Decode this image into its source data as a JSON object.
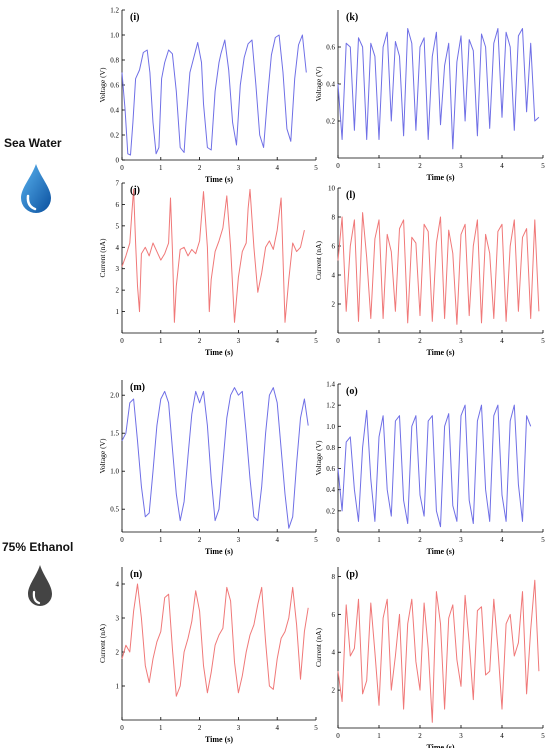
{
  "sections": [
    {
      "label": "Sea Water",
      "icon": "blue-water-drop-icon",
      "color": "#1f6fc4"
    },
    {
      "label": "75% Ethanol",
      "icon": "gray-liquid-drop-icon",
      "color": "#444444"
    }
  ],
  "colors": {
    "voltage": "#6f6fe6",
    "current": "#f07878",
    "axis": "#000000"
  },
  "chart_data": [
    {
      "id": "i",
      "type": "line",
      "panel_label": "(i)",
      "xlabel": "Time (s)",
      "ylabel": "Voltage (V)",
      "xlim": [
        0,
        5
      ],
      "ylim": [
        0,
        1.2
      ],
      "xticks": [
        0,
        1,
        2,
        3,
        4,
        5
      ],
      "yticks": [
        0,
        0.2,
        0.4,
        0.6,
        0.8,
        1.0,
        1.2
      ],
      "ytick_labels": [
        "0",
        "0.2",
        "0.4",
        "0.6",
        "0.8",
        "1.0",
        "1.2"
      ],
      "color": "voltage",
      "x": [
        0,
        0.08,
        0.15,
        0.22,
        0.28,
        0.35,
        0.45,
        0.55,
        0.65,
        0.72,
        0.8,
        0.88,
        0.95,
        1.02,
        1.1,
        1.2,
        1.3,
        1.4,
        1.5,
        1.6,
        1.65,
        1.75,
        1.85,
        1.95,
        2.05,
        2.1,
        2.2,
        2.3,
        2.4,
        2.5,
        2.55,
        2.65,
        2.75,
        2.85,
        2.95,
        3.05,
        3.15,
        3.25,
        3.35,
        3.45,
        3.55,
        3.65,
        3.75,
        3.85,
        3.95,
        4.05,
        4.15,
        4.25,
        4.35,
        4.45,
        4.55,
        4.65,
        4.75
      ],
      "y": [
        0.7,
        0.4,
        0.05,
        0.04,
        0.3,
        0.65,
        0.72,
        0.86,
        0.88,
        0.7,
        0.3,
        0.05,
        0.1,
        0.65,
        0.78,
        0.88,
        0.85,
        0.55,
        0.1,
        0.06,
        0.3,
        0.7,
        0.82,
        0.94,
        0.78,
        0.45,
        0.1,
        0.08,
        0.55,
        0.78,
        0.85,
        0.96,
        0.72,
        0.3,
        0.12,
        0.6,
        0.82,
        0.93,
        0.96,
        0.6,
        0.2,
        0.1,
        0.5,
        0.84,
        0.98,
        1.0,
        0.7,
        0.25,
        0.15,
        0.65,
        0.92,
        1.0,
        0.7
      ]
    },
    {
      "id": "k",
      "type": "line",
      "panel_label": "(k)",
      "xlabel": "Time (s)",
      "ylabel": "Voltage (V)",
      "xlim": [
        0,
        5
      ],
      "ylim": [
        0,
        0.8
      ],
      "xticks": [
        0,
        1,
        2,
        3,
        4,
        5
      ],
      "yticks": [
        0.2,
        0.4,
        0.6
      ],
      "ytick_labels": [
        "0.2",
        "0.4",
        "0.6"
      ],
      "color": "voltage",
      "x": [
        0,
        0.1,
        0.2,
        0.3,
        0.4,
        0.5,
        0.6,
        0.7,
        0.8,
        0.9,
        1.0,
        1.1,
        1.2,
        1.3,
        1.4,
        1.5,
        1.6,
        1.7,
        1.8,
        1.9,
        2.0,
        2.1,
        2.2,
        2.3,
        2.4,
        2.5,
        2.6,
        2.7,
        2.8,
        2.9,
        3.0,
        3.1,
        3.2,
        3.3,
        3.4,
        3.5,
        3.6,
        3.7,
        3.8,
        3.9,
        4.0,
        4.1,
        4.2,
        4.3,
        4.4,
        4.5,
        4.6,
        4.7,
        4.8,
        4.9
      ],
      "y": [
        0.4,
        0.1,
        0.62,
        0.6,
        0.15,
        0.65,
        0.6,
        0.1,
        0.62,
        0.55,
        0.1,
        0.6,
        0.68,
        0.2,
        0.63,
        0.55,
        0.12,
        0.7,
        0.62,
        0.15,
        0.6,
        0.65,
        0.1,
        0.55,
        0.68,
        0.18,
        0.5,
        0.62,
        0.05,
        0.52,
        0.66,
        0.2,
        0.64,
        0.58,
        0.12,
        0.67,
        0.6,
        0.16,
        0.62,
        0.7,
        0.22,
        0.68,
        0.6,
        0.15,
        0.66,
        0.7,
        0.25,
        0.62,
        0.2,
        0.22
      ]
    },
    {
      "id": "j",
      "type": "line",
      "panel_label": "(j)",
      "xlabel": "Time (s)",
      "ylabel": "Current (nA)",
      "xlim": [
        0,
        5
      ],
      "ylim": [
        0,
        7
      ],
      "xticks": [
        0,
        1,
        2,
        3,
        4,
        5
      ],
      "yticks": [
        1,
        2,
        3,
        4,
        5,
        6,
        7
      ],
      "ytick_labels": [
        "1",
        "2",
        "3",
        "4",
        "5",
        "6",
        "7"
      ],
      "color": "current",
      "x": [
        0,
        0.1,
        0.2,
        0.25,
        0.3,
        0.35,
        0.4,
        0.45,
        0.5,
        0.6,
        0.7,
        0.8,
        0.9,
        1.0,
        1.1,
        1.2,
        1.25,
        1.3,
        1.35,
        1.4,
        1.5,
        1.6,
        1.7,
        1.8,
        1.9,
        2.0,
        2.1,
        2.2,
        2.25,
        2.3,
        2.4,
        2.5,
        2.6,
        2.7,
        2.8,
        2.9,
        3.0,
        3.1,
        3.2,
        3.25,
        3.3,
        3.4,
        3.5,
        3.6,
        3.7,
        3.8,
        3.9,
        4.0,
        4.1,
        4.15,
        4.2,
        4.3,
        4.4,
        4.5,
        4.6,
        4.7
      ],
      "y": [
        3.1,
        3.6,
        4.2,
        5.5,
        6.7,
        4.2,
        2.2,
        1.0,
        3.7,
        4.0,
        3.6,
        4.2,
        3.8,
        3.4,
        3.7,
        4.2,
        6.3,
        3.9,
        0.5,
        2.2,
        3.9,
        4.0,
        3.6,
        3.9,
        3.7,
        4.3,
        6.6,
        4.0,
        1.0,
        2.5,
        3.8,
        4.3,
        4.9,
        6.4,
        4.0,
        0.5,
        2.6,
        3.8,
        4.2,
        5.8,
        6.7,
        4.0,
        1.9,
        2.8,
        4.0,
        4.3,
        3.9,
        4.8,
        6.3,
        3.5,
        0.5,
        2.5,
        4.2,
        3.8,
        4.0,
        4.8
      ]
    },
    {
      "id": "l",
      "type": "line",
      "panel_label": "(l)",
      "xlabel": "Time (s)",
      "ylabel": "Current (nA)",
      "xlim": [
        0,
        5
      ],
      "ylim": [
        0,
        10
      ],
      "xticks": [
        0,
        1,
        2,
        3,
        4,
        5
      ],
      "yticks": [
        2,
        4,
        6,
        8,
        10
      ],
      "ytick_labels": [
        "2",
        "4",
        "6",
        "8",
        "10"
      ],
      "color": "current",
      "x": [
        0,
        0.1,
        0.2,
        0.3,
        0.4,
        0.5,
        0.6,
        0.7,
        0.8,
        0.9,
        1.0,
        1.1,
        1.2,
        1.3,
        1.4,
        1.5,
        1.6,
        1.7,
        1.8,
        1.9,
        2.0,
        2.1,
        2.2,
        2.3,
        2.4,
        2.5,
        2.6,
        2.7,
        2.8,
        2.9,
        3.0,
        3.1,
        3.2,
        3.3,
        3.4,
        3.5,
        3.6,
        3.7,
        3.8,
        3.9,
        4.0,
        4.1,
        4.2,
        4.3,
        4.4,
        4.5,
        4.6,
        4.7,
        4.8,
        4.9
      ],
      "y": [
        5.0,
        8.0,
        1.5,
        6.0,
        7.8,
        0.8,
        8.3,
        5.2,
        1.0,
        6.5,
        7.8,
        1.0,
        6.8,
        5.6,
        1.5,
        7.2,
        7.8,
        0.7,
        6.6,
        6.2,
        1.2,
        7.5,
        7.0,
        0.8,
        6.2,
        8.0,
        1.0,
        7.1,
        5.5,
        0.6,
        6.8,
        7.5,
        1.2,
        6.0,
        7.8,
        0.7,
        6.8,
        5.5,
        1.0,
        7.0,
        7.5,
        0.8,
        6.0,
        7.8,
        1.5,
        6.6,
        7.2,
        1.0,
        7.8,
        1.5
      ]
    },
    {
      "id": "m",
      "type": "line",
      "panel_label": "(m)",
      "xlabel": "Time (s)",
      "ylabel": "Voltage (V)",
      "xlim": [
        0,
        5
      ],
      "ylim": [
        0.2,
        2.2
      ],
      "xticks": [
        0,
        1,
        2,
        3,
        4,
        5
      ],
      "yticks": [
        0.5,
        1.0,
        1.5,
        2.0
      ],
      "ytick_labels": [
        "0.5",
        "1.0",
        "1.5",
        "2.0"
      ],
      "color": "voltage",
      "x": [
        0,
        0.1,
        0.2,
        0.3,
        0.4,
        0.5,
        0.6,
        0.7,
        0.8,
        0.9,
        1.0,
        1.1,
        1.2,
        1.3,
        1.4,
        1.5,
        1.6,
        1.7,
        1.8,
        1.9,
        2.0,
        2.1,
        2.2,
        2.3,
        2.4,
        2.5,
        2.6,
        2.7,
        2.8,
        2.9,
        3.0,
        3.1,
        3.2,
        3.3,
        3.4,
        3.5,
        3.6,
        3.7,
        3.8,
        3.9,
        4.0,
        4.1,
        4.2,
        4.3,
        4.4,
        4.5,
        4.6,
        4.7,
        4.8
      ],
      "y": [
        1.4,
        1.5,
        1.9,
        1.95,
        1.4,
        0.8,
        0.4,
        0.45,
        1.0,
        1.6,
        1.95,
        2.05,
        1.9,
        1.3,
        0.7,
        0.35,
        0.6,
        1.2,
        1.75,
        2.05,
        1.9,
        2.05,
        1.6,
        0.9,
        0.35,
        0.5,
        1.1,
        1.7,
        2.0,
        2.1,
        2.0,
        2.05,
        1.5,
        0.9,
        0.4,
        0.35,
        0.8,
        1.5,
        2.0,
        2.1,
        1.9,
        1.3,
        0.7,
        0.25,
        0.4,
        1.1,
        1.7,
        1.95,
        1.6
      ]
    },
    {
      "id": "o",
      "type": "line",
      "panel_label": "(o)",
      "xlabel": "Time (s)",
      "ylabel": "Voltage (V)",
      "xlim": [
        0,
        5
      ],
      "ylim": [
        0,
        1.4
      ],
      "xticks": [
        0,
        1,
        2,
        3,
        4,
        5
      ],
      "yticks": [
        0.2,
        0.4,
        0.6,
        0.8,
        1.0,
        1.2,
        1.4
      ],
      "ytick_labels": [
        "0.2",
        "0.4",
        "0.6",
        "0.8",
        "1.0",
        "1.2",
        "1.4"
      ],
      "color": "voltage",
      "x": [
        0,
        0.1,
        0.2,
        0.3,
        0.4,
        0.5,
        0.6,
        0.7,
        0.8,
        0.9,
        1.0,
        1.1,
        1.2,
        1.3,
        1.4,
        1.5,
        1.6,
        1.7,
        1.8,
        1.9,
        2.0,
        2.1,
        2.2,
        2.3,
        2.4,
        2.5,
        2.6,
        2.7,
        2.8,
        2.9,
        3.0,
        3.1,
        3.2,
        3.3,
        3.4,
        3.5,
        3.6,
        3.7,
        3.8,
        3.9,
        4.0,
        4.1,
        4.2,
        4.3,
        4.4,
        4.5,
        4.6,
        4.7
      ],
      "y": [
        0.6,
        0.2,
        0.85,
        0.9,
        0.4,
        0.1,
        0.8,
        1.15,
        0.5,
        0.1,
        0.9,
        1.1,
        0.4,
        0.15,
        1.05,
        1.1,
        0.3,
        0.08,
        1.0,
        1.1,
        0.35,
        0.15,
        1.05,
        1.1,
        0.2,
        0.05,
        1.0,
        1.12,
        0.25,
        0.1,
        1.1,
        1.2,
        0.3,
        0.08,
        1.05,
        1.2,
        0.4,
        0.1,
        1.1,
        1.2,
        0.35,
        0.1,
        1.05,
        1.2,
        0.45,
        0.1,
        1.1,
        1.0
      ]
    },
    {
      "id": "n",
      "type": "line",
      "panel_label": "(n)",
      "xlabel": "Time (s)",
      "ylabel": "Current (nA)",
      "xlim": [
        0,
        5
      ],
      "ylim": [
        0,
        4.5
      ],
      "xticks": [
        0,
        1,
        2,
        3,
        4,
        5
      ],
      "yticks": [
        1,
        2,
        3,
        4
      ],
      "ytick_labels": [
        "1",
        "2",
        "3",
        "4"
      ],
      "color": "current",
      "x": [
        0,
        0.1,
        0.2,
        0.3,
        0.4,
        0.5,
        0.6,
        0.7,
        0.8,
        0.9,
        1.0,
        1.1,
        1.2,
        1.3,
        1.4,
        1.5,
        1.6,
        1.7,
        1.8,
        1.9,
        2.0,
        2.1,
        2.2,
        2.3,
        2.4,
        2.5,
        2.6,
        2.7,
        2.8,
        2.9,
        3.0,
        3.1,
        3.2,
        3.3,
        3.4,
        3.5,
        3.6,
        3.7,
        3.8,
        3.9,
        4.0,
        4.1,
        4.2,
        4.3,
        4.4,
        4.5,
        4.6,
        4.7,
        4.8
      ],
      "y": [
        1.8,
        2.2,
        2.0,
        3.2,
        4.0,
        3.0,
        1.6,
        1.1,
        1.8,
        2.3,
        2.6,
        3.6,
        3.7,
        2.1,
        0.7,
        1.0,
        2.0,
        2.4,
        2.9,
        3.8,
        3.2,
        1.6,
        0.8,
        1.4,
        2.2,
        2.5,
        2.7,
        3.9,
        3.5,
        1.7,
        0.8,
        1.3,
        2.0,
        2.5,
        2.8,
        3.4,
        3.9,
        2.3,
        1.0,
        0.9,
        1.8,
        2.4,
        2.6,
        3.0,
        3.9,
        2.8,
        1.2,
        2.6,
        3.3
      ]
    },
    {
      "id": "p",
      "type": "line",
      "panel_label": "(p)",
      "xlabel": "Time (s)",
      "ylabel": "Current (nA)",
      "xlim": [
        0,
        5
      ],
      "ylim": [
        0,
        8.5
      ],
      "xticks": [
        0,
        1,
        2,
        3,
        4,
        5
      ],
      "yticks": [
        2,
        4,
        6,
        8
      ],
      "ytick_labels": [
        "2",
        "4",
        "6",
        "8"
      ],
      "color": "current",
      "x": [
        0,
        0.1,
        0.2,
        0.3,
        0.4,
        0.5,
        0.6,
        0.7,
        0.8,
        0.9,
        1.0,
        1.1,
        1.2,
        1.3,
        1.4,
        1.5,
        1.6,
        1.7,
        1.8,
        1.9,
        2.0,
        2.1,
        2.2,
        2.3,
        2.4,
        2.5,
        2.6,
        2.7,
        2.8,
        2.9,
        3.0,
        3.1,
        3.2,
        3.3,
        3.4,
        3.5,
        3.6,
        3.7,
        3.8,
        3.9,
        4.0,
        4.1,
        4.2,
        4.3,
        4.4,
        4.5,
        4.6,
        4.7,
        4.8,
        4.9
      ],
      "y": [
        3.0,
        1.4,
        6.5,
        3.8,
        4.2,
        6.8,
        1.8,
        2.5,
        6.6,
        4.0,
        1.2,
        5.8,
        6.8,
        2.0,
        3.8,
        6.0,
        1.0,
        5.5,
        6.8,
        3.5,
        2.0,
        6.6,
        4.2,
        0.3,
        7.2,
        5.5,
        1.0,
        5.8,
        6.5,
        3.6,
        2.2,
        7.0,
        4.5,
        1.5,
        6.2,
        6.4,
        2.8,
        3.0,
        6.8,
        4.2,
        1.0,
        5.5,
        6.0,
        3.8,
        4.5,
        7.2,
        1.8,
        5.2,
        7.8,
        3.0
      ]
    }
  ]
}
